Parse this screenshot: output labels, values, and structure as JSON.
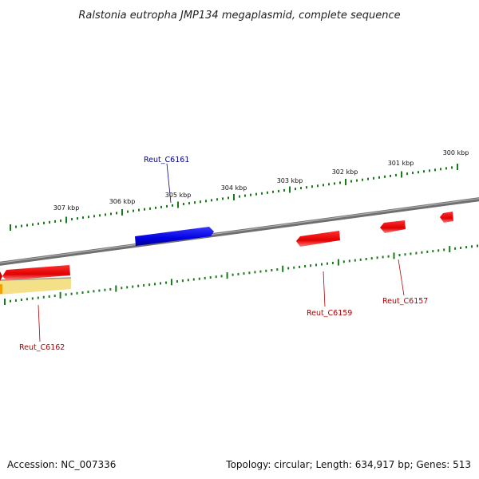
{
  "title": "Ralstonia eutropha JMP134 megaplasmid, complete sequence",
  "footer": {
    "accession": "Accession: NC_007336",
    "summary": "Topology: circular; Length: 634,917 bp; Genes: 513"
  },
  "colors": {
    "forward_gene": "#0000ee",
    "reverse_gene": "#ee0000",
    "tick": "#1a7a1a",
    "backbone": "#808080",
    "feature_band": "#f5e08a",
    "forward_label": "#00008b",
    "reverse_label": "#b00000"
  },
  "ticks": [
    {
      "label": "307 kbp"
    },
    {
      "label": "306 kbp"
    },
    {
      "label": "305 kbp"
    },
    {
      "label": "304 kbp"
    },
    {
      "label": "303 kbp"
    },
    {
      "label": "302 kbp"
    },
    {
      "label": "301 kbp"
    },
    {
      "label": "300 kbp"
    }
  ],
  "genes": [
    {
      "name": "Reut_C6161",
      "strand": "forward"
    },
    {
      "name": "Reut_C6162",
      "strand": "reverse"
    },
    {
      "name": "Reut_C6159",
      "strand": "reverse"
    },
    {
      "name": "Reut_C6157",
      "strand": "reverse"
    }
  ]
}
